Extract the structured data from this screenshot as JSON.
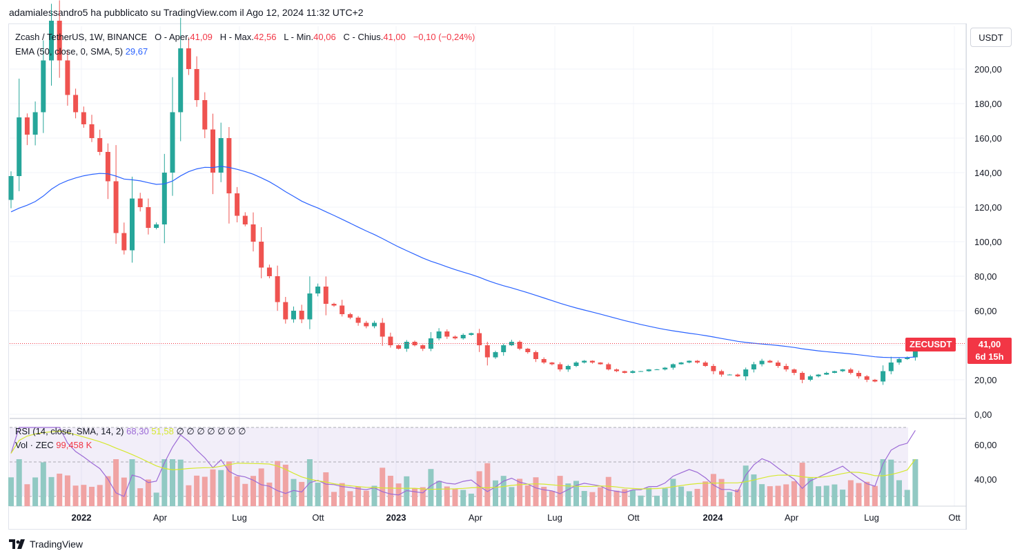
{
  "header": {
    "published_line": "adamialessandro5 ha pubblicato su TradingView.com il Ago 12, 2024 11:32 UTC+2"
  },
  "legend": {
    "symbol": "Zcash / TetherUS, 1W, BINANCE",
    "o_label": "O - Aper.",
    "o_value": "41,09",
    "h_label": "H - Max.",
    "h_value": "42,56",
    "l_label": "L - Min.",
    "l_value": "40,06",
    "c_label": "C - Chius.",
    "c_value": "41,00",
    "change": "−0,10 (−0,24%)",
    "ema_label": "EMA (50, close, 0, SMA, 5)",
    "ema_value": "29,67",
    "rsi_label": "RSI (14, close, SMA, 14, 2)",
    "rsi_value": "68,30",
    "rsi_ma_value": "51,58",
    "rsi_extra": "∅ ∅ ∅ ∅ ∅ ∅ ∅",
    "vol_label": "Vol · ZEC",
    "vol_value": "99,458 K"
  },
  "currency_button": "USDT",
  "price_axis": [
    "200,00",
    "180,00",
    "160,00",
    "140,00",
    "120,00",
    "100,00",
    "80,00",
    "60,00",
    "40,00",
    "20,00",
    "0,00"
  ],
  "rsi_axis": [
    "60,00",
    "40,00"
  ],
  "time_axis": [
    {
      "label": "2022",
      "bold": true
    },
    {
      "label": "Apr",
      "bold": false
    },
    {
      "label": "Lug",
      "bold": false
    },
    {
      "label": "Ott",
      "bold": false
    },
    {
      "label": "2023",
      "bold": true
    },
    {
      "label": "Apr",
      "bold": false
    },
    {
      "label": "Lug",
      "bold": false
    },
    {
      "label": "Ott",
      "bold": false
    },
    {
      "label": "2024",
      "bold": true
    },
    {
      "label": "Apr",
      "bold": false
    },
    {
      "label": "Lug",
      "bold": false
    },
    {
      "label": "Ott",
      "bold": false
    }
  ],
  "last_price": {
    "symbol": "ZECUSDT",
    "price": "41,00",
    "countdown": "6d 15h"
  },
  "footer": {
    "brand": "TradingView"
  },
  "colors": {
    "up": "#26a69a",
    "down": "#ef5350",
    "ema": "#2962ff",
    "rsi": "#9c6ad6",
    "rsi_ma": "#d5e82e",
    "vol_up": "#91c9c3",
    "vol_down": "#f0a3a3"
  },
  "chart_data": {
    "type": "candlestick",
    "title": "Zcash / TetherUS, 1W, BINANCE",
    "x_range": [
      "2021-10-11",
      "2024-10-07"
    ],
    "y_range": [
      0,
      215
    ],
    "price_scale": [
      0,
      20,
      40,
      60,
      80,
      100,
      120,
      140,
      160,
      180,
      200
    ],
    "ema_period": 50,
    "anchor_closes": [
      [
        0,
        138
      ],
      [
        1,
        172
      ],
      [
        2,
        162
      ],
      [
        3,
        175
      ],
      [
        4,
        205
      ],
      [
        5,
        228
      ],
      [
        6,
        205
      ],
      [
        7,
        185
      ],
      [
        8,
        175
      ],
      [
        9,
        168
      ],
      [
        10,
        160
      ],
      [
        11,
        152
      ],
      [
        12,
        135
      ],
      [
        13,
        105
      ],
      [
        14,
        95
      ],
      [
        15,
        125
      ],
      [
        16,
        120
      ],
      [
        17,
        108
      ],
      [
        18,
        110
      ],
      [
        19,
        140
      ],
      [
        20,
        175
      ],
      [
        21,
        212
      ],
      [
        22,
        200
      ],
      [
        23,
        182
      ],
      [
        24,
        165
      ],
      [
        25,
        140
      ],
      [
        26,
        160
      ],
      [
        27,
        128
      ],
      [
        28,
        115
      ],
      [
        29,
        110
      ],
      [
        30,
        100
      ],
      [
        31,
        85
      ],
      [
        32,
        80
      ],
      [
        33,
        65
      ],
      [
        34,
        55
      ],
      [
        35,
        60
      ],
      [
        36,
        55
      ],
      [
        37,
        70
      ],
      [
        38,
        74
      ],
      [
        39,
        64
      ],
      [
        40,
        63
      ],
      [
        41,
        58
      ],
      [
        42,
        56
      ],
      [
        43,
        53
      ],
      [
        44,
        51
      ],
      [
        45,
        53
      ],
      [
        46,
        45
      ],
      [
        47,
        40
      ],
      [
        48,
        38
      ],
      [
        49,
        42
      ],
      [
        50,
        40
      ],
      [
        51,
        38
      ],
      [
        52,
        44
      ],
      [
        53,
        48
      ],
      [
        54,
        45
      ],
      [
        55,
        44
      ],
      [
        56,
        46
      ],
      [
        57,
        47
      ],
      [
        58,
        40
      ],
      [
        59,
        33
      ],
      [
        60,
        36
      ],
      [
        61,
        40
      ],
      [
        62,
        42
      ],
      [
        63,
        38
      ],
      [
        64,
        36
      ],
      [
        65,
        32
      ],
      [
        66,
        30
      ],
      [
        67,
        29
      ],
      [
        68,
        26
      ],
      [
        69,
        28
      ],
      [
        70,
        30
      ],
      [
        71,
        31
      ],
      [
        72,
        30
      ],
      [
        73,
        29
      ],
      [
        74,
        26
      ],
      [
        75,
        25
      ],
      [
        76,
        24
      ],
      [
        77,
        25
      ],
      [
        78,
        25
      ],
      [
        79,
        26
      ],
      [
        80,
        26
      ],
      [
        81,
        27
      ],
      [
        82,
        29
      ],
      [
        83,
        30
      ],
      [
        84,
        31
      ],
      [
        85,
        30
      ],
      [
        86,
        28
      ],
      [
        87,
        25
      ],
      [
        88,
        23
      ],
      [
        89,
        23
      ],
      [
        90,
        22
      ],
      [
        91,
        26
      ],
      [
        92,
        29
      ],
      [
        93,
        31
      ],
      [
        94,
        30
      ],
      [
        95,
        28
      ],
      [
        96,
        26
      ],
      [
        97,
        24
      ],
      [
        98,
        20
      ],
      [
        99,
        22
      ],
      [
        100,
        23
      ],
      [
        101,
        24
      ],
      [
        102,
        25
      ],
      [
        103,
        26
      ],
      [
        104,
        24
      ],
      [
        105,
        22
      ],
      [
        106,
        20
      ],
      [
        107,
        19
      ],
      [
        108,
        25
      ],
      [
        109,
        30
      ],
      [
        110,
        32
      ],
      [
        111,
        33
      ],
      [
        112,
        41
      ]
    ],
    "volume_relative_max": 1.0,
    "rsi_levels": [
      70,
      50,
      30
    ],
    "rsi_last": 68.3,
    "rsi_ma_last": 51.58
  }
}
